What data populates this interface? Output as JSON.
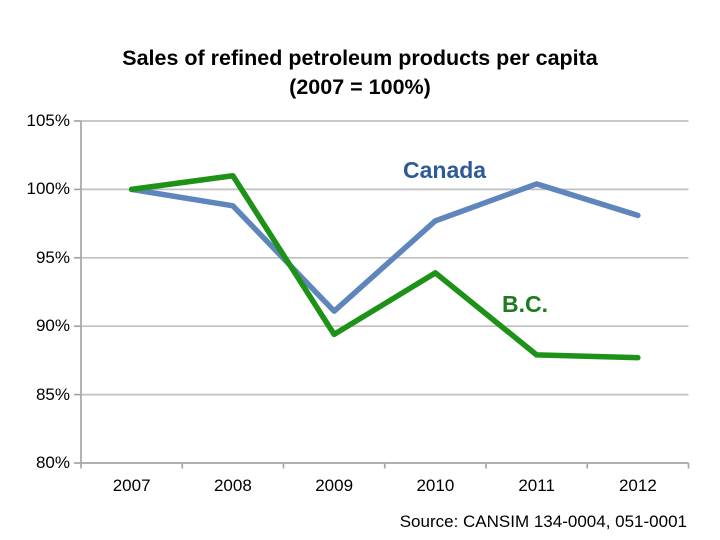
{
  "title": {
    "line1": "Sales of refined petroleum products per capita",
    "line2": "(2007 = 100%)"
  },
  "source_note": "Source: CANSIM 134-0004, 051-0001",
  "colors": {
    "background": "#FFFFFF",
    "gridline": "#C0C0C0",
    "axis": "#A6A6A6",
    "title_text": "#000000",
    "canada_line": "#5E86BC",
    "canada_label": "#2E5B97",
    "bc_line": "#1D9217",
    "bc_label": "#1E7C1E"
  },
  "chart_data": {
    "type": "line",
    "title": "Sales of refined petroleum products per capita (2007 = 100%)",
    "categories": [
      "2007",
      "2008",
      "2009",
      "2010",
      "2011",
      "2012"
    ],
    "series": [
      {
        "id": "canada",
        "name": "Canada",
        "color": "#5E86BC",
        "label_color": "#2E5B97",
        "values": [
          100,
          98.8,
          91.1,
          97.7,
          100.4,
          98.1
        ]
      },
      {
        "id": "b-c",
        "name": "B.C.",
        "color": "#1D9217",
        "label_color": "#1E7C1E",
        "values": [
          100,
          101,
          89.4,
          93.9,
          87.9,
          87.7
        ]
      }
    ],
    "xlabel": "",
    "ylabel": "",
    "ylim": [
      80,
      105
    ],
    "ytick_step": 5,
    "y_ticks": [
      "105%",
      "100%",
      "95%",
      "90%",
      "85%",
      "80%"
    ],
    "x_ticks": [
      "2007",
      "2008",
      "2009",
      "2010",
      "2011",
      "2012"
    ],
    "grid": "horizontal-only",
    "legend": "inline-series-labels"
  }
}
